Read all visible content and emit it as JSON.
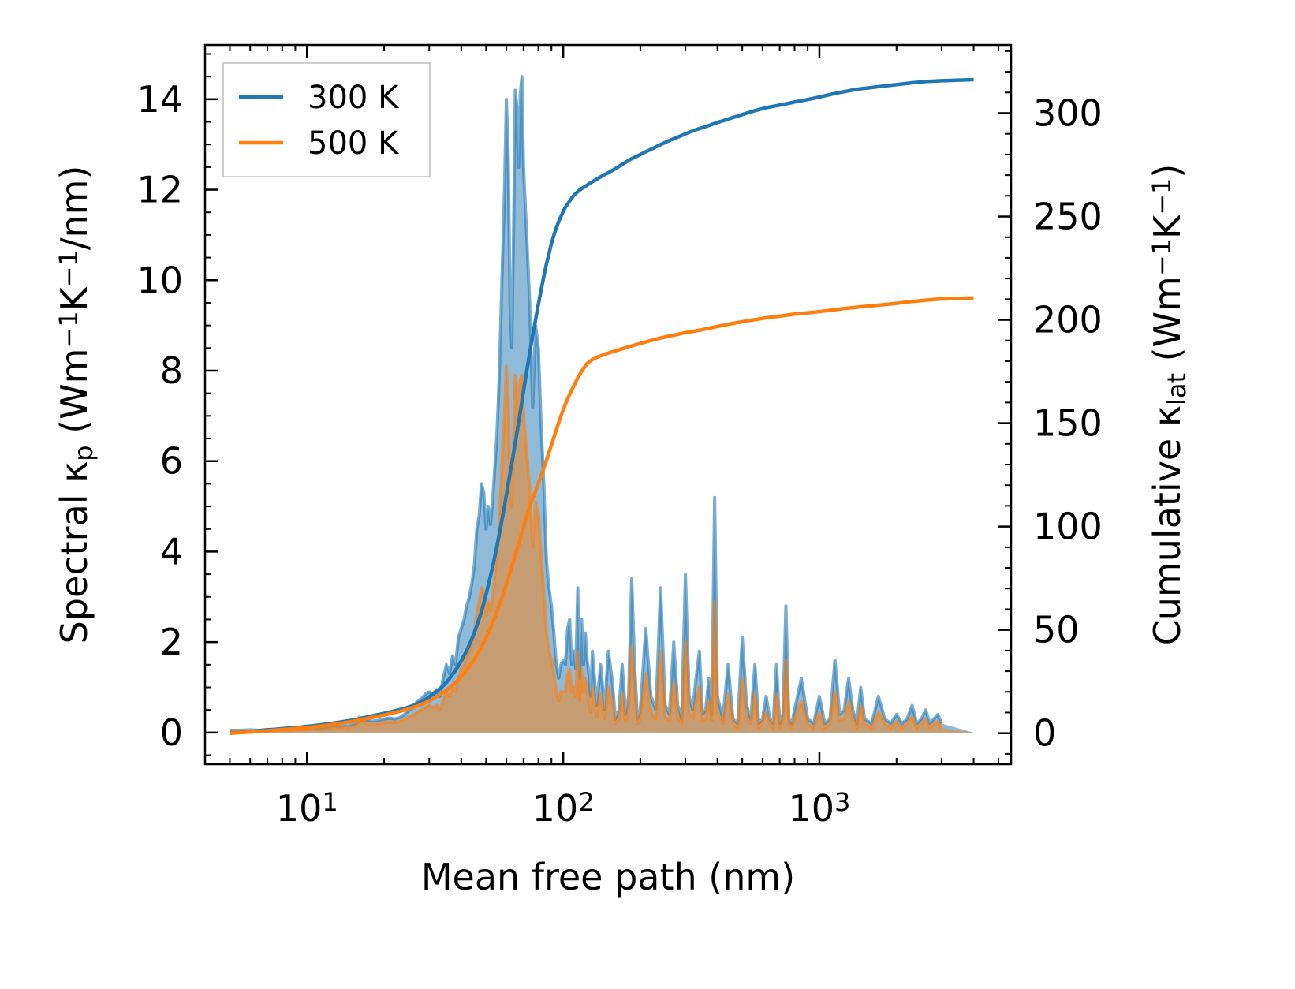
{
  "chart_data": {
    "type": "area+line (dual axis)",
    "xlabel": "Mean free path (nm)",
    "x_scale": "log",
    "x_ticks": [
      {
        "base": "10",
        "exp": "1",
        "value": 10
      },
      {
        "base": "10",
        "exp": "2",
        "value": 100
      },
      {
        "base": "10",
        "exp": "3",
        "value": 1000
      }
    ],
    "xlim": [
      4.0,
      5600
    ],
    "ylabel_left": {
      "pre": "Spectral κ",
      "sub": "p",
      "mid1": " (Wm",
      "sup1": "−1",
      "mid2": "K",
      "sup2": "−1",
      "post": "/nm)"
    },
    "ylim_left": [
      -0.7,
      15.2
    ],
    "yticks_left": [
      "0",
      "2",
      "4",
      "6",
      "8",
      "10",
      "12",
      "14"
    ],
    "ylabel_right": {
      "pre": "Cumulative κ",
      "sub": "lat",
      "mid1": " (Wm",
      "sup1": "−1",
      "mid2": "K",
      "sup2": "−1",
      "post": ")"
    },
    "ylim_right": [
      -15,
      333
    ],
    "yticks_right": [
      "0",
      "50",
      "100",
      "150",
      "200",
      "250",
      "300"
    ],
    "legend": {
      "position": "upper-left",
      "entries": [
        "300 K",
        "500 K"
      ]
    },
    "colors": {
      "300 K": "#1f77b4",
      "500 K": "#ff7f0e"
    },
    "x": [
      5.0,
      5.5,
      6.0,
      6.5,
      7.0,
      7.5,
      8.0,
      8.5,
      9.0,
      9.5,
      10.0,
      10.5,
      11.0,
      11.5,
      12.0,
      12.5,
      13.0,
      13.5,
      14.0,
      14.5,
      15.0,
      15.5,
      16.0,
      17.0,
      18.0,
      19.0,
      20.0,
      21.0,
      22.0,
      23.0,
      24.0,
      25.0,
      26.0,
      27.0,
      28.0,
      29.0,
      30.0,
      31.0,
      32.0,
      33.0,
      34.0,
      35.0,
      36.0,
      37.0,
      38.0,
      39.0,
      40.0,
      41.0,
      42.0,
      43.0,
      44.0,
      45.0,
      46.0,
      47.0,
      48.0,
      49.0,
      50.0,
      51.0,
      52.0,
      53.0,
      54.0,
      55.0,
      56.0,
      57.0,
      58.0,
      59.0,
      60.0,
      61.0,
      62.0,
      63.0,
      64.0,
      65.0,
      66.0,
      67.0,
      68.0,
      69.0,
      70.0,
      72.0,
      74.0,
      76.0,
      78.0,
      80.0,
      82.0,
      84.0,
      86.0,
      88.0,
      90.0,
      92.0,
      94.0,
      96.0,
      98.0,
      100.0,
      102.0,
      104.0,
      106.0,
      108.0,
      110.0,
      112.0,
      114.0,
      116.0,
      118.0,
      120.0,
      122.0,
      124.0,
      126.0,
      128.0,
      130.0,
      135.0,
      140.0,
      145.0,
      150.0,
      155.0,
      160.0,
      165.0,
      170.0,
      175.0,
      180.0,
      185.0,
      190.0,
      195.0,
      200.0,
      210.0,
      220.0,
      230.0,
      240.0,
      250.0,
      260.0,
      270.0,
      280.0,
      290.0,
      300.0,
      310.0,
      320.0,
      330.0,
      340.0,
      350.0,
      360.0,
      370.0,
      380.0,
      390.0,
      400.0,
      420.0,
      440.0,
      460.0,
      480.0,
      500.0,
      520.0,
      540.0,
      560.0,
      580.0,
      600.0,
      620.0,
      640.0,
      660.0,
      680.0,
      700.0,
      720.0,
      740.0,
      760.0,
      780.0,
      800.0,
      850.0,
      900.0,
      950.0,
      1000.0,
      1050.0,
      1100.0,
      1150.0,
      1200.0,
      1250.0,
      1300.0,
      1350.0,
      1400.0,
      1450.0,
      1500.0,
      1600.0,
      1700.0,
      1800.0,
      1900.0,
      2000.0,
      2100.0,
      2200.0,
      2300.0,
      2400.0,
      2500.0,
      2600.0,
      2700.0,
      2800.0,
      2900.0,
      3000.0,
      3200.0,
      3400.0,
      3600.0,
      3800.0,
      4000.0
    ],
    "series": [
      {
        "name": "300 K",
        "spectral": [
          0.05,
          0.05,
          0.06,
          0.05,
          0.07,
          0.06,
          0.07,
          0.08,
          0.09,
          0.08,
          0.1,
          0.12,
          0.1,
          0.11,
          0.12,
          0.14,
          0.15,
          0.14,
          0.16,
          0.15,
          0.18,
          0.2,
          0.25,
          0.28,
          0.25,
          0.27,
          0.3,
          0.32,
          0.3,
          0.33,
          0.4,
          0.5,
          0.55,
          0.7,
          0.75,
          0.85,
          0.9,
          0.85,
          0.95,
          0.8,
          1.2,
          1.5,
          1.3,
          1.7,
          1.5,
          2.1,
          2.3,
          2.5,
          2.8,
          3.0,
          3.3,
          3.7,
          4.5,
          4.8,
          5.5,
          5.3,
          4.5,
          5.0,
          4.6,
          5.1,
          5.8,
          6.5,
          7.5,
          9.0,
          10.5,
          12.0,
          14.0,
          12.8,
          9.5,
          8.5,
          11.0,
          14.2,
          13.8,
          12.5,
          14.1,
          14.5,
          12.5,
          11.0,
          9.5,
          7.2,
          9.0,
          8.5,
          6.8,
          5.5,
          3.8,
          3.2,
          2.8,
          2.2,
          1.5,
          1.2,
          1.5,
          1.6,
          1.5,
          2.3,
          2.5,
          1.5,
          1.8,
          1.4,
          3.2,
          1.2,
          2.5,
          1.5,
          2.2,
          1.6,
          1.3,
          0.8,
          1.8,
          0.6,
          1.5,
          0.5,
          1.8,
          1.2,
          0.3,
          0.5,
          1.5,
          0.4,
          0.8,
          3.4,
          1.5,
          0.3,
          0.5,
          2.3,
          0.8,
          0.5,
          3.2,
          0.6,
          0.4,
          2.0,
          0.6,
          0.3,
          3.5,
          0.8,
          0.5,
          1.2,
          1.8,
          0.4,
          0.5,
          1.2,
          0.4,
          5.2,
          0.8,
          0.3,
          1.5,
          0.3,
          0.2,
          2.1,
          0.6,
          0.3,
          1.5,
          0.2,
          0.3,
          0.8,
          0.3,
          0.2,
          1.5,
          0.2,
          0.4,
          2.8,
          0.3,
          0.2,
          0.5,
          1.2,
          0.3,
          0.2,
          0.8,
          0.2,
          0.3,
          1.6,
          0.4,
          0.5,
          1.2,
          0.5,
          0.2,
          1.0,
          0.3,
          0.2,
          0.8,
          0.3,
          0.2,
          0.4,
          0.2,
          0.3,
          0.6,
          0.2,
          0.3,
          0.5,
          0.2,
          0.3,
          0.4,
          0.2
        ],
        "cumulative": [
          0,
          0.4,
          0.8,
          1.2,
          1.6,
          1.9,
          2.2,
          2.5,
          2.8,
          3.0,
          3.3,
          3.6,
          3.9,
          4.2,
          4.5,
          4.8,
          5.1,
          5.4,
          5.7,
          6.0,
          6.3,
          6.6,
          7.0,
          7.7,
          8.4,
          9.0,
          9.6,
          10.2,
          10.8,
          11.4,
          12.0,
          12.7,
          13.4,
          14.3,
          15.3,
          16.4,
          17.6,
          18.8,
          20.1,
          21.5,
          23.0,
          24.6,
          26.5,
          28.5,
          30.5,
          32.7,
          35.0,
          37.5,
          40.0,
          42.8,
          45.7,
          48.7,
          52.0,
          55.5,
          59.0,
          63.0,
          67.2,
          71.5,
          76.0,
          80.5,
          85.0,
          89.8,
          94.8,
          99.8,
          104.8,
          110.0,
          115.2,
          120.5,
          125.5,
          130.5,
          135.5,
          140.5,
          145.5,
          150.5,
          155.5,
          160.5,
          165.5,
          175.0,
          184.0,
          192.5,
          200.0,
          207.5,
          214.5,
          221.0,
          227.0,
          232.0,
          237.0,
          241.0,
          244.5,
          247.5,
          250.0,
          252.5,
          254.5,
          256.0,
          257.5,
          259.0,
          260.2,
          261.2,
          262.0,
          262.8,
          263.5,
          264.0,
          264.6,
          265.2,
          265.8,
          266.3,
          266.8,
          268.0,
          269.2,
          270.3,
          271.2,
          272.2,
          273.2,
          274.2,
          275.2,
          276.2,
          277.2,
          278.0,
          278.6,
          279.3,
          280.0,
          281.3,
          282.5,
          283.7,
          284.8,
          285.8,
          286.8,
          287.6,
          288.4,
          289.2,
          290.0,
          290.7,
          291.4,
          292.0,
          292.5,
          293.0,
          293.5,
          294.0,
          294.5,
          295.0,
          295.5,
          296.3,
          297.1,
          297.9,
          298.6,
          299.3,
          300.0,
          300.6,
          301.2,
          301.7,
          302.2,
          302.7,
          303.0,
          303.3,
          303.6,
          303.9,
          304.2,
          304.5,
          304.8,
          305.1,
          305.4,
          306.0,
          306.6,
          307.2,
          307.8,
          308.4,
          309.0,
          309.5,
          310.0,
          310.4,
          310.8,
          311.2,
          311.5,
          311.8,
          312.0,
          312.4,
          312.8,
          313.2,
          313.5,
          313.8,
          314.1,
          314.4,
          314.7,
          314.9,
          315.1,
          315.3,
          315.4,
          315.5,
          315.6,
          315.7,
          315.8,
          315.9,
          316.0,
          316.1,
          316.2
        ]
      },
      {
        "name": "500 K",
        "spectral": [
          0.03,
          0.03,
          0.04,
          0.03,
          0.05,
          0.04,
          0.05,
          0.05,
          0.06,
          0.05,
          0.07,
          0.08,
          0.07,
          0.08,
          0.08,
          0.1,
          0.1,
          0.1,
          0.12,
          0.1,
          0.13,
          0.15,
          0.35,
          0.2,
          0.18,
          0.2,
          0.22,
          0.24,
          0.22,
          0.25,
          0.3,
          0.35,
          0.38,
          0.45,
          0.5,
          0.55,
          0.6,
          0.55,
          0.6,
          0.5,
          0.7,
          0.9,
          0.8,
          1.0,
          0.9,
          1.2,
          1.4,
          1.5,
          1.7,
          1.8,
          2.0,
          2.2,
          2.6,
          2.9,
          3.2,
          3.1,
          2.6,
          2.9,
          2.7,
          3.0,
          3.4,
          3.8,
          4.4,
          5.3,
          6.2,
          7.0,
          8.1,
          7.4,
          5.5,
          5.0,
          6.4,
          7.9,
          7.6,
          7.0,
          7.8,
          7.9,
          7.0,
          6.2,
          5.4,
          4.1,
          5.1,
          4.8,
          3.9,
          3.1,
          2.2,
          1.8,
          1.6,
          1.3,
          0.9,
          0.7,
          0.9,
          0.9,
          0.9,
          1.3,
          1.4,
          0.9,
          1.0,
          0.8,
          1.8,
          0.7,
          1.4,
          0.9,
          1.2,
          0.9,
          0.7,
          0.45,
          1.0,
          0.35,
          0.85,
          0.3,
          1.0,
          0.7,
          0.2,
          0.3,
          0.85,
          0.25,
          0.45,
          1.9,
          0.85,
          0.2,
          0.3,
          1.3,
          0.45,
          0.3,
          1.8,
          0.35,
          0.25,
          1.1,
          0.35,
          0.2,
          2.0,
          0.45,
          0.3,
          0.7,
          1.0,
          0.25,
          0.3,
          0.7,
          0.25,
          2.9,
          0.45,
          0.2,
          0.85,
          0.2,
          0.1,
          1.2,
          0.35,
          0.2,
          0.85,
          0.1,
          0.2,
          0.45,
          0.2,
          0.1,
          0.85,
          0.1,
          0.25,
          1.6,
          0.2,
          0.1,
          0.3,
          0.7,
          0.2,
          0.1,
          0.45,
          0.1,
          0.2,
          0.9,
          0.25,
          0.3,
          0.7,
          0.3,
          0.1,
          0.6,
          0.2,
          0.1,
          0.45,
          0.2,
          0.1,
          0.25,
          0.1,
          0.2,
          0.35,
          0.1,
          0.2,
          0.3,
          0.1,
          0.2,
          0.25,
          0.1
        ],
        "cumulative": [
          0,
          0.3,
          0.6,
          0.9,
          1.2,
          1.5,
          1.8,
          2.0,
          2.3,
          2.5,
          2.8,
          3.0,
          3.3,
          3.6,
          3.9,
          4.2,
          4.5,
          4.8,
          5.1,
          5.4,
          5.7,
          6.0,
          6.4,
          7.0,
          7.6,
          8.2,
          8.8,
          9.4,
          10.0,
          10.6,
          11.2,
          11.8,
          12.5,
          13.2,
          14.0,
          14.8,
          15.7,
          16.6,
          17.6,
          18.6,
          19.7,
          20.8,
          22.0,
          23.3,
          24.6,
          26.0,
          27.5,
          29.0,
          30.6,
          32.3,
          34.0,
          35.8,
          37.7,
          39.7,
          41.8,
          44.0,
          46.2,
          48.5,
          50.9,
          53.3,
          55.8,
          58.4,
          61.0,
          63.7,
          66.4,
          69.2,
          72.0,
          74.8,
          77.6,
          80.4,
          83.2,
          86.0,
          88.8,
          91.6,
          94.4,
          97.2,
          100.0,
          105.0,
          109.5,
          113.5,
          117.2,
          120.8,
          124.5,
          128.3,
          132.0,
          135.8,
          139.5,
          143.2,
          146.8,
          150.2,
          153.5,
          156.5,
          159.2,
          161.7,
          164.0,
          166.0,
          168.0,
          170.0,
          172.0,
          173.5,
          175.0,
          176.5,
          177.8,
          178.8,
          179.6,
          180.2,
          180.8,
          181.8,
          182.6,
          183.3,
          183.9,
          184.5,
          185.0,
          185.5,
          186.0,
          186.5,
          187.0,
          187.4,
          187.8,
          188.2,
          188.6,
          189.3,
          190.0,
          190.6,
          191.2,
          191.7,
          192.2,
          192.6,
          193.0,
          193.4,
          193.8,
          194.1,
          194.4,
          194.7,
          195.0,
          195.3,
          195.6,
          195.9,
          196.2,
          196.5,
          196.8,
          197.3,
          197.8,
          198.3,
          198.7,
          199.1,
          199.5,
          199.8,
          200.1,
          200.4,
          200.7,
          201.0,
          201.2,
          201.4,
          201.6,
          201.8,
          202.0,
          202.2,
          202.4,
          202.6,
          202.8,
          203.1,
          203.4,
          203.7,
          204.0,
          204.3,
          204.6,
          204.9,
          205.2,
          205.5,
          205.7,
          205.9,
          206.1,
          206.3,
          206.5,
          206.8,
          207.1,
          207.4,
          207.7,
          208.0,
          208.3,
          208.6,
          208.9,
          209.1,
          209.3,
          209.5,
          209.7,
          209.9,
          210.0,
          210.1,
          210.2,
          210.3,
          210.4,
          210.5,
          210.6
        ]
      }
    ]
  }
}
